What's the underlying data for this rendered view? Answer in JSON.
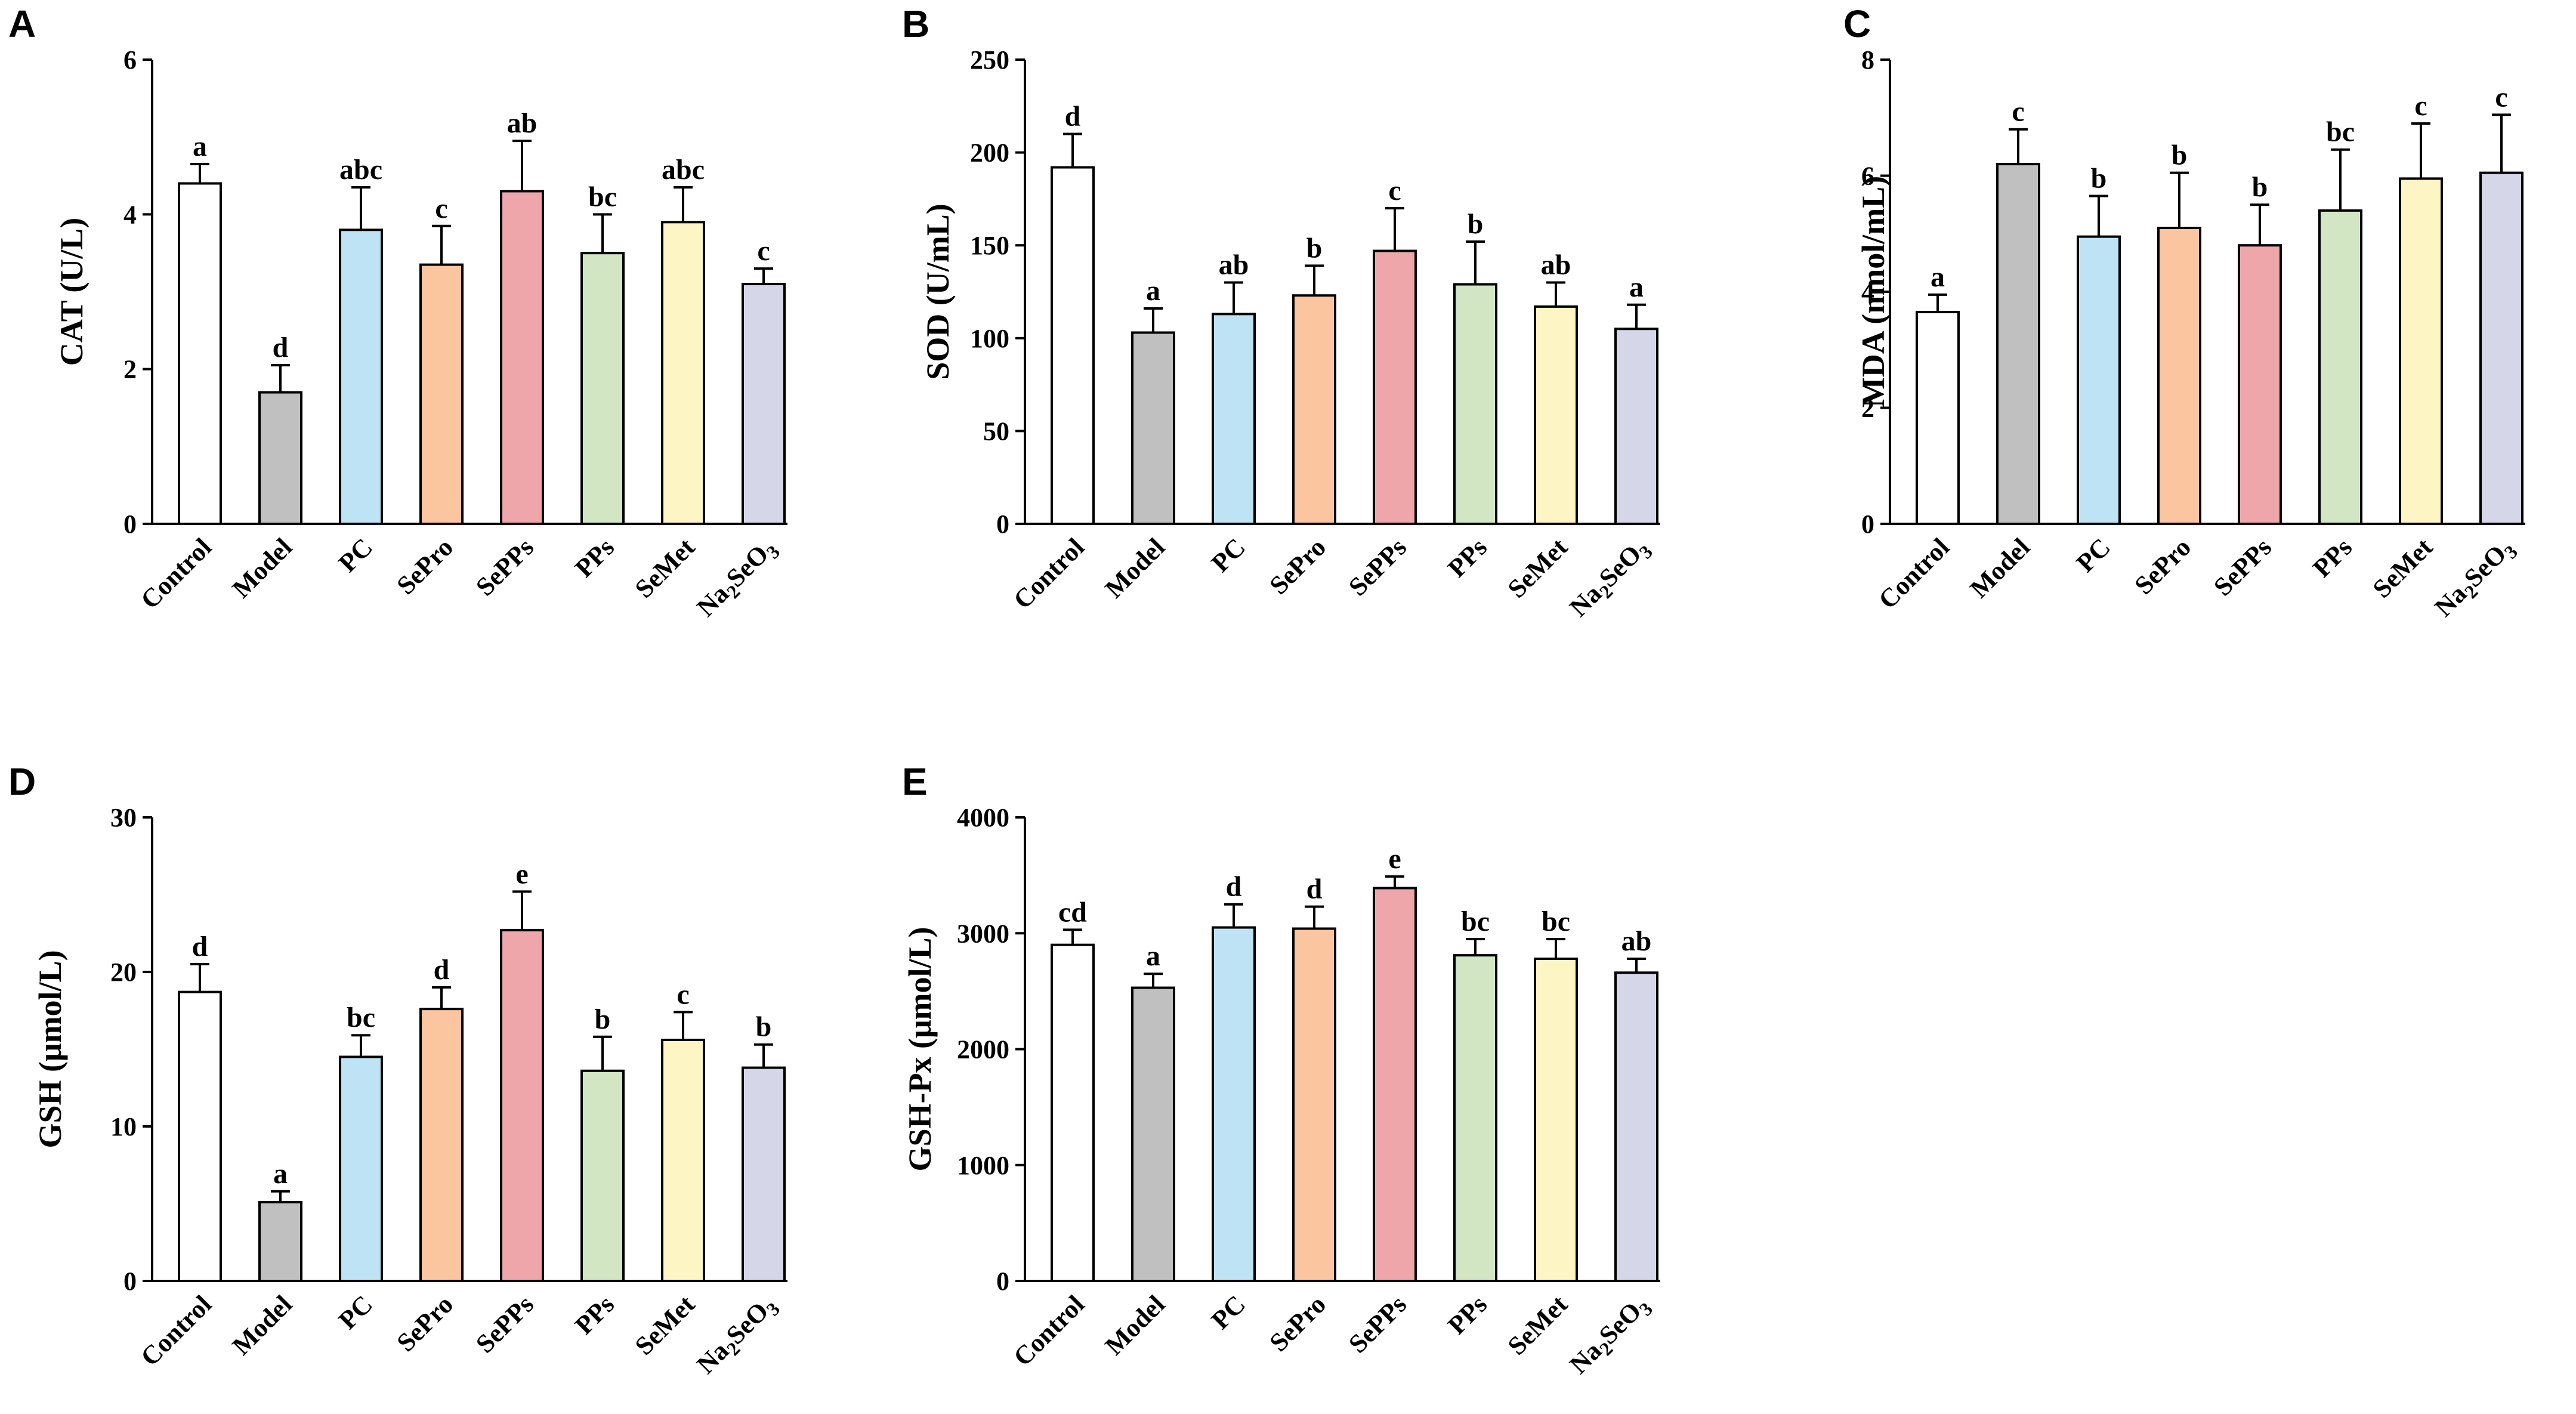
{
  "categories": [
    "Control",
    "Model",
    "PC",
    "SePro",
    "SePPs",
    "PPs",
    "SeMet",
    "Na₂SeO₃"
  ],
  "colors": [
    "#ffffff",
    "#c0c0c0",
    "#bde3f5",
    "#fbc59f",
    "#eea6ab",
    "#d3e6c4",
    "#fdf5c3",
    "#d6d6e9"
  ],
  "chart_data": [
    {
      "panel": "A",
      "type": "bar",
      "ylabel": "CAT (U/L)",
      "ylim": [
        0,
        6
      ],
      "yticks": [
        "0",
        "2",
        "4",
        "6"
      ],
      "values": [
        4.4,
        1.7,
        3.8,
        3.35,
        4.3,
        3.5,
        3.9,
        3.1
      ],
      "errors": [
        0.25,
        0.35,
        0.55,
        0.5,
        0.65,
        0.5,
        0.45,
        0.2
      ],
      "sig": [
        "a",
        "d",
        "abc",
        "c",
        "ab",
        "bc",
        "abc",
        "c"
      ]
    },
    {
      "panel": "B",
      "type": "bar",
      "ylabel": "SOD (U/mL)",
      "ylim": [
        0,
        250
      ],
      "yticks": [
        "0",
        "50",
        "100",
        "150",
        "200",
        "250"
      ],
      "values": [
        192,
        103,
        113,
        123,
        147,
        129,
        117,
        105
      ],
      "errors": [
        18,
        13,
        17,
        16,
        23,
        23,
        13,
        13
      ],
      "sig": [
        "d",
        "a",
        "ab",
        "b",
        "c",
        "b",
        "ab",
        "a"
      ]
    },
    {
      "panel": "C",
      "type": "bar",
      "ylabel": "MDA (nmol/mL)",
      "ylim": [
        0,
        8
      ],
      "yticks": [
        "0",
        "2",
        "4",
        "6",
        "8"
      ],
      "values": [
        3.65,
        6.2,
        4.95,
        5.1,
        4.8,
        5.4,
        5.95,
        6.05
      ],
      "errors": [
        0.3,
        0.6,
        0.7,
        0.95,
        0.7,
        1.05,
        0.95,
        1.0
      ],
      "sig": [
        "a",
        "c",
        "b",
        "b",
        "b",
        "bc",
        "c",
        "c"
      ]
    },
    {
      "panel": "D",
      "type": "bar",
      "ylabel": "GSH (μmol/L)",
      "ylim": [
        0,
        30
      ],
      "yticks": [
        "0",
        "10",
        "20",
        "30"
      ],
      "values": [
        18.7,
        5.1,
        14.5,
        17.6,
        22.7,
        13.6,
        15.6,
        13.8
      ],
      "errors": [
        1.8,
        0.7,
        1.4,
        1.4,
        2.5,
        2.2,
        1.8,
        1.5
      ],
      "sig": [
        "d",
        "a",
        "bc",
        "d",
        "e",
        "b",
        "c",
        "b"
      ]
    },
    {
      "panel": "E",
      "type": "bar",
      "ylabel": "GSH-Px (μmol/L)",
      "ylim": [
        0,
        4000
      ],
      "yticks": [
        "0",
        "1000",
        "2000",
        "3000",
        "4000"
      ],
      "values": [
        2900,
        2530,
        3050,
        3040,
        3390,
        2810,
        2780,
        2660
      ],
      "errors": [
        130,
        120,
        200,
        190,
        100,
        140,
        170,
        120
      ],
      "sig": [
        "cd",
        "a",
        "d",
        "d",
        "e",
        "bc",
        "bc",
        "ab"
      ]
    }
  ]
}
